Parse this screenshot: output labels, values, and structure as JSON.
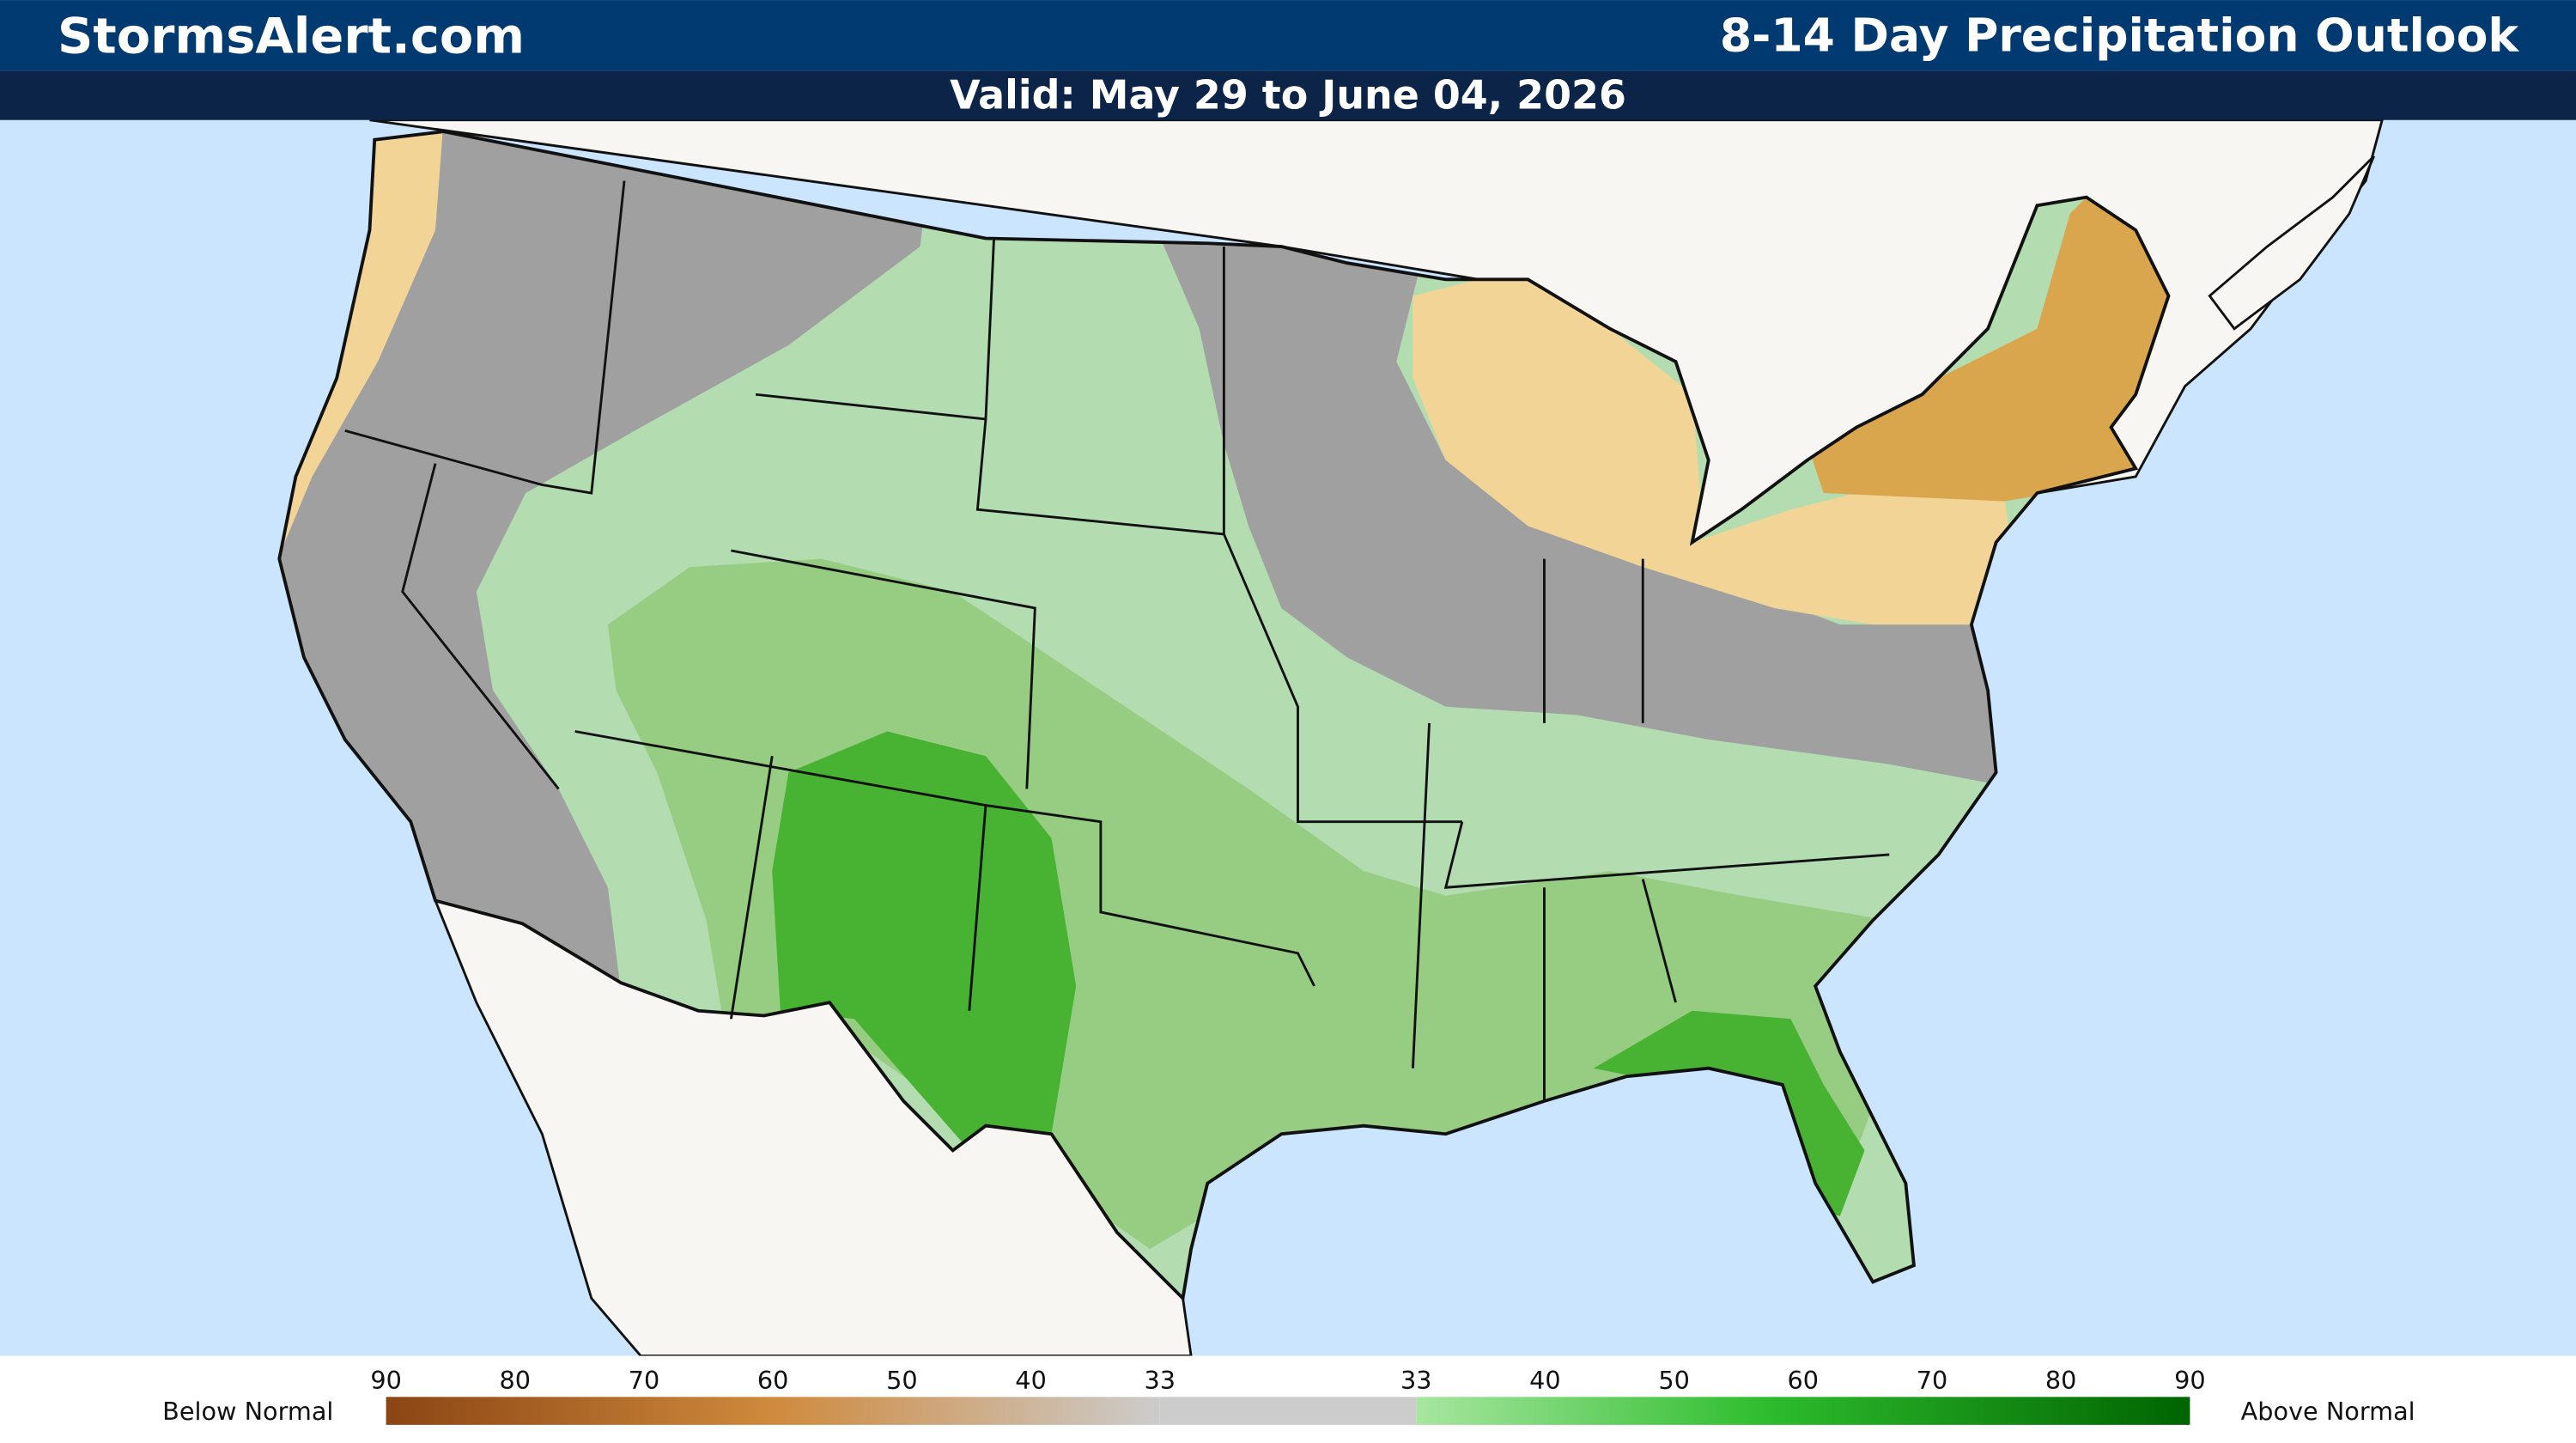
{
  "header": {
    "site": "StormsAlert.com",
    "title": "8-14 Day Precipitation Outlook",
    "valid": "Valid: May 29 to June 04, 2026"
  },
  "legend": {
    "below_label": "Below Normal",
    "above_label": "Above Normal",
    "below_ticks": [
      90,
      80,
      70,
      60,
      50,
      40,
      33
    ],
    "above_ticks": [
      33,
      40,
      50,
      60,
      70,
      80,
      90
    ]
  }
}
